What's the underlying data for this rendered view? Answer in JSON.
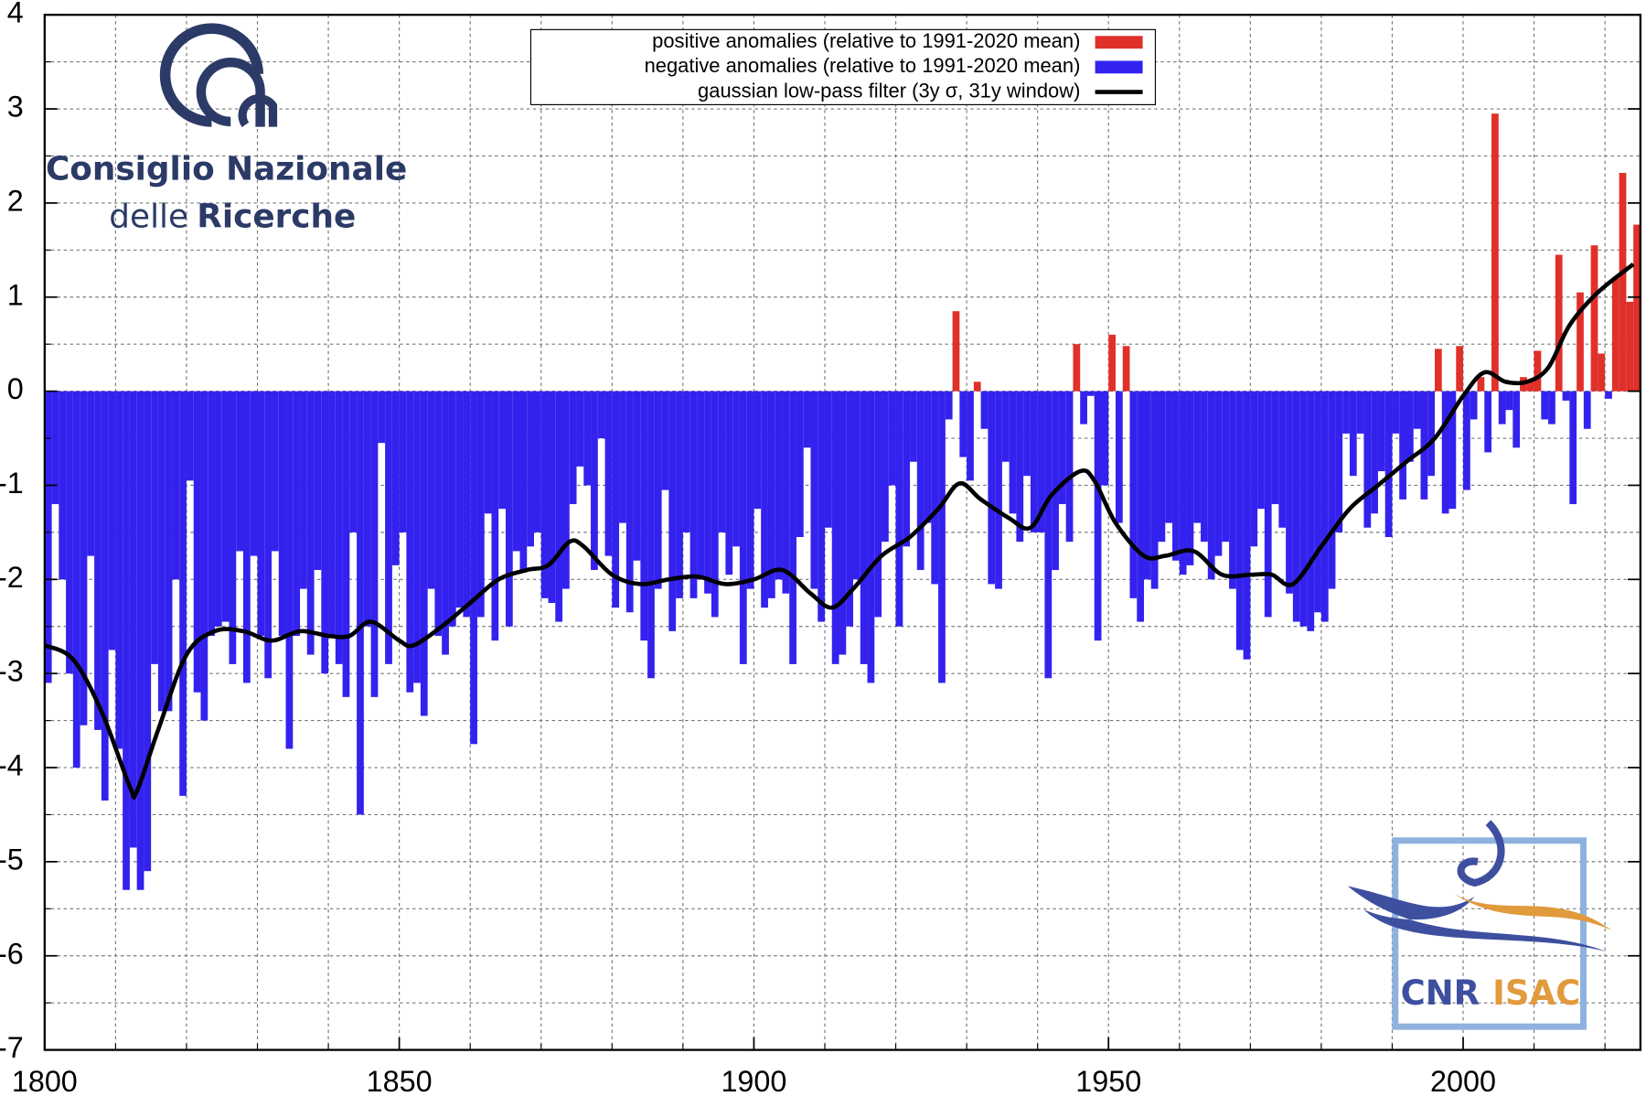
{
  "chart_data": {
    "type": "bar",
    "xlim": [
      1800,
      2025
    ],
    "ylim": [
      -7,
      4
    ],
    "xticks": [
      1800,
      1850,
      1900,
      1950,
      2000
    ],
    "xminorticks": [
      1810,
      1820,
      1830,
      1840,
      1860,
      1870,
      1880,
      1890,
      1910,
      1920,
      1930,
      1940,
      1960,
      1970,
      1980,
      1990,
      2010,
      2020
    ],
    "yticks": [
      -7,
      -6,
      -5,
      -4,
      -3,
      -2,
      -1,
      0,
      1,
      2,
      3,
      4
    ],
    "yminorticks": [
      -6.5,
      -5.5,
      -4.5,
      -3.5,
      -2.5,
      -1.5,
      -0.5,
      0.5,
      1.5,
      2.5,
      3.5
    ],
    "grid": true,
    "legend": "top-center",
    "logo_text": {
      "line1": "Consiglio Nazionale",
      "line2a": "delle",
      "line2b": "Ricerche",
      "cnr": "CNR",
      "isac": "ISAC"
    },
    "series": [
      {
        "name": "positive anomalies (relative to 1991-2020 mean)",
        "color": "#e0302a",
        "x": [
          1928,
          1931,
          1945,
          1950,
          1952,
          1996,
          1999,
          2002,
          2004,
          2008,
          2009,
          2010,
          2013,
          2016,
          2018,
          2019,
          2021,
          2022,
          2023,
          2024
        ],
        "values": [
          0.85,
          0.1,
          0.5,
          0.6,
          0.48,
          0.45,
          0.48,
          0.15,
          2.95,
          0.15,
          0.12,
          0.43,
          1.45,
          1.05,
          1.55,
          0.4,
          1.2,
          2.32,
          0.95,
          1.77
        ]
      },
      {
        "name": "negative anomalies (relative to 1991-2020 mean)",
        "color": "#3322ee",
        "x": [
          1800,
          1801,
          1802,
          1803,
          1804,
          1805,
          1806,
          1807,
          1808,
          1809,
          1810,
          1811,
          1812,
          1813,
          1814,
          1815,
          1816,
          1817,
          1818,
          1819,
          1820,
          1821,
          1822,
          1823,
          1824,
          1825,
          1826,
          1827,
          1828,
          1829,
          1830,
          1831,
          1832,
          1833,
          1834,
          1835,
          1836,
          1837,
          1838,
          1839,
          1840,
          1841,
          1842,
          1843,
          1844,
          1845,
          1846,
          1847,
          1848,
          1849,
          1850,
          1851,
          1852,
          1853,
          1854,
          1855,
          1856,
          1857,
          1858,
          1859,
          1860,
          1861,
          1862,
          1863,
          1864,
          1865,
          1866,
          1867,
          1868,
          1869,
          1870,
          1871,
          1872,
          1873,
          1874,
          1875,
          1876,
          1877,
          1878,
          1879,
          1880,
          1881,
          1882,
          1883,
          1884,
          1885,
          1886,
          1887,
          1888,
          1889,
          1890,
          1891,
          1892,
          1893,
          1894,
          1895,
          1896,
          1897,
          1898,
          1899,
          1900,
          1901,
          1902,
          1903,
          1904,
          1905,
          1906,
          1907,
          1908,
          1909,
          1910,
          1911,
          1912,
          1913,
          1914,
          1915,
          1916,
          1917,
          1918,
          1919,
          1920,
          1921,
          1922,
          1923,
          1924,
          1925,
          1926,
          1927,
          1929,
          1930,
          1932,
          1933,
          1934,
          1935,
          1936,
          1937,
          1938,
          1939,
          1940,
          1941,
          1942,
          1943,
          1944,
          1946,
          1947,
          1948,
          1949,
          1951,
          1953,
          1954,
          1955,
          1956,
          1957,
          1958,
          1959,
          1960,
          1961,
          1962,
          1963,
          1964,
          1965,
          1966,
          1967,
          1968,
          1969,
          1970,
          1971,
          1972,
          1973,
          1974,
          1975,
          1976,
          1977,
          1978,
          1979,
          1980,
          1981,
          1982,
          1983,
          1984,
          1985,
          1986,
          1987,
          1988,
          1989,
          1990,
          1991,
          1992,
          1993,
          1994,
          1995,
          1997,
          1998,
          2000,
          2001,
          2003,
          2005,
          2006,
          2007,
          2011,
          2012,
          2014,
          2015,
          2017,
          2020
        ],
        "values": [
          -3.1,
          -1.2,
          -2.0,
          -3.0,
          -4.0,
          -3.55,
          -1.75,
          -3.6,
          -4.35,
          -2.75,
          -3.8,
          -5.3,
          -4.85,
          -5.3,
          -5.1,
          -2.9,
          -3.4,
          -3.4,
          -2.0,
          -4.3,
          -0.95,
          -3.2,
          -3.5,
          -2.6,
          -2.5,
          -2.45,
          -2.9,
          -1.7,
          -3.1,
          -1.75,
          -2.6,
          -3.05,
          -1.7,
          -2.6,
          -3.8,
          -2.6,
          -2.1,
          -2.8,
          -1.9,
          -3.0,
          -2.6,
          -2.9,
          -3.25,
          -1.5,
          -4.5,
          -2.5,
          -3.25,
          -0.55,
          -2.9,
          -1.85,
          -1.5,
          -3.2,
          -3.1,
          -3.45,
          -2.1,
          -2.6,
          -2.8,
          -2.5,
          -2.3,
          -2.4,
          -3.75,
          -2.4,
          -1.3,
          -2.65,
          -1.25,
          -2.5,
          -1.7,
          -1.9,
          -1.65,
          -1.5,
          -2.2,
          -2.25,
          -2.45,
          -2.1,
          -1.2,
          -0.8,
          -1.0,
          -1.9,
          -0.5,
          -1.75,
          -2.3,
          -1.4,
          -2.35,
          -1.8,
          -2.65,
          -3.05,
          -2.1,
          -1.05,
          -2.55,
          -2.2,
          -1.5,
          -2.2,
          -2.0,
          -2.15,
          -2.4,
          -1.5,
          -1.95,
          -1.65,
          -2.9,
          -2.1,
          -1.25,
          -2.3,
          -2.2,
          -2.0,
          -2.15,
          -2.9,
          -1.55,
          -0.6,
          -2.1,
          -2.45,
          -1.45,
          -2.9,
          -2.8,
          -2.5,
          -2.0,
          -2.9,
          -3.1,
          -2.4,
          -1.6,
          -1.0,
          -2.5,
          -1.65,
          -0.75,
          -1.9,
          -1.4,
          -2.05,
          -3.1,
          -0.3,
          -0.7,
          -0.95,
          -0.4,
          -2.05,
          -2.1,
          -0.75,
          -1.3,
          -1.6,
          -0.9,
          -1.5,
          -1.5,
          -3.05,
          -1.9,
          -1.2,
          -1.6,
          -0.35,
          -0.05,
          -2.65,
          -1.0,
          -1.4,
          -2.2,
          -2.45,
          -2.0,
          -2.1,
          -1.6,
          -1.4,
          -1.8,
          -1.95,
          -1.85,
          -1.4,
          -1.6,
          -2.0,
          -1.75,
          -1.6,
          -2.1,
          -2.75,
          -2.85,
          -1.65,
          -1.25,
          -2.4,
          -1.2,
          -1.45,
          -2.15,
          -2.45,
          -2.5,
          -2.55,
          -2.35,
          -2.45,
          -2.1,
          -1.5,
          -0.45,
          -0.9,
          -0.45,
          -1.45,
          -1.3,
          -0.85,
          -1.55,
          -0.45,
          -1.15,
          -0.75,
          -0.4,
          -1.15,
          -0.9,
          -1.3,
          -1.25,
          -1.05,
          -0.3,
          -0.65,
          -0.35,
          -0.2,
          -0.6,
          -0.3,
          -0.35,
          -0.1,
          -1.2,
          -0.4,
          -0.08
        ]
      },
      {
        "name": "gaussian low-pass filter (3y σ, 31y window)",
        "color": "#000000",
        "type": "line",
        "x": [
          1800,
          1804,
          1808,
          1812,
          1813,
          1816,
          1820,
          1824,
          1828,
          1832,
          1836,
          1840,
          1843,
          1846,
          1850,
          1852,
          1856,
          1860,
          1864,
          1868,
          1871,
          1874,
          1876,
          1880,
          1884,
          1888,
          1892,
          1896,
          1900,
          1904,
          1908,
          1911,
          1914,
          1918,
          1922,
          1926,
          1929,
          1932,
          1936,
          1939,
          1942,
          1946,
          1948,
          1951,
          1955,
          1958,
          1962,
          1966,
          1970,
          1973,
          1976,
          1980,
          1984,
          1988,
          1992,
          1996,
          2000,
          2003,
          2006,
          2009,
          2012,
          2015,
          2019,
          2024
        ],
        "values": [
          -2.7,
          -2.85,
          -3.4,
          -4.2,
          -4.25,
          -3.6,
          -2.8,
          -2.55,
          -2.55,
          -2.65,
          -2.55,
          -2.6,
          -2.6,
          -2.45,
          -2.65,
          -2.7,
          -2.5,
          -2.25,
          -2.0,
          -1.9,
          -1.85,
          -1.6,
          -1.65,
          -1.95,
          -2.05,
          -2.0,
          -1.97,
          -2.05,
          -2.0,
          -1.9,
          -2.15,
          -2.3,
          -2.1,
          -1.75,
          -1.55,
          -1.25,
          -0.98,
          -1.15,
          -1.35,
          -1.45,
          -1.1,
          -0.85,
          -0.95,
          -1.4,
          -1.75,
          -1.75,
          -1.7,
          -1.95,
          -1.95,
          -1.95,
          -2.05,
          -1.65,
          -1.25,
          -1.0,
          -0.75,
          -0.5,
          -0.05,
          0.2,
          0.1,
          0.1,
          0.25,
          0.7,
          1.05,
          1.35
        ]
      }
    ]
  }
}
